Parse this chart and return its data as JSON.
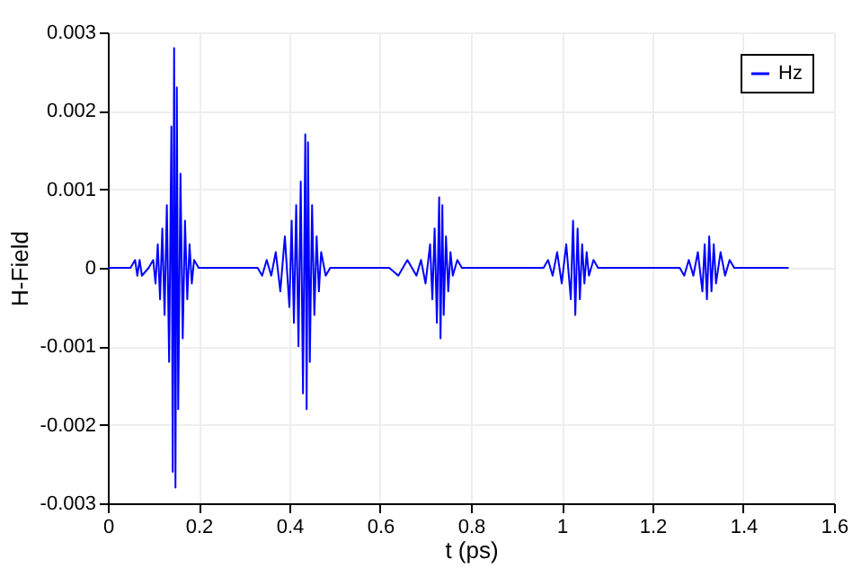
{
  "chart_data": {
    "type": "line",
    "xlabel": "t (ps)",
    "ylabel": "H-Field",
    "x": [
      0,
      0.05,
      0.06,
      0.065,
      0.07,
      0.075,
      0.09,
      0.1,
      0.105,
      0.11,
      0.115,
      0.12,
      0.125,
      0.13,
      0.135,
      0.14,
      0.143,
      0.146,
      0.149,
      0.152,
      0.155,
      0.16,
      0.165,
      0.17,
      0.175,
      0.18,
      0.185,
      0.19,
      0.2,
      0.3,
      0.33,
      0.34,
      0.35,
      0.36,
      0.37,
      0.38,
      0.39,
      0.4,
      0.405,
      0.41,
      0.415,
      0.42,
      0.425,
      0.43,
      0.435,
      0.438,
      0.441,
      0.445,
      0.45,
      0.455,
      0.46,
      0.465,
      0.47,
      0.48,
      0.49,
      0.6,
      0.62,
      0.64,
      0.66,
      0.68,
      0.69,
      0.7,
      0.71,
      0.715,
      0.72,
      0.725,
      0.73,
      0.733,
      0.737,
      0.74,
      0.745,
      0.75,
      0.755,
      0.76,
      0.77,
      0.78,
      0.96,
      0.97,
      0.98,
      0.99,
      1.0,
      1.01,
      1.02,
      1.025,
      1.03,
      1.035,
      1.04,
      1.045,
      1.05,
      1.055,
      1.06,
      1.07,
      1.08,
      1.25,
      1.26,
      1.27,
      1.28,
      1.29,
      1.3,
      1.31,
      1.315,
      1.32,
      1.325,
      1.33,
      1.335,
      1.34,
      1.35,
      1.36,
      1.37,
      1.38,
      1.5
    ],
    "series": [
      {
        "name": "Hz",
        "color": "#0000ff",
        "values": [
          0,
          0,
          0.0001,
          -0.0001,
          0.0001,
          -0.0001,
          0,
          0.0001,
          -0.0002,
          0.0003,
          -0.0004,
          0.0005,
          -0.0006,
          0.0008,
          -0.0012,
          0.0018,
          -0.0026,
          0.0028,
          -0.0028,
          0.0023,
          -0.0018,
          0.0012,
          -0.0009,
          0.0006,
          -0.0004,
          0.0003,
          -0.0002,
          0.0001,
          0,
          0,
          0,
          -0.0001,
          0.0001,
          -0.0001,
          0.0002,
          -0.0003,
          0.0004,
          -0.0005,
          0.0006,
          -0.0007,
          0.0008,
          -0.001,
          0.0011,
          -0.0016,
          0.0017,
          -0.0018,
          0.0016,
          -0.0012,
          0.0008,
          -0.0006,
          0.0004,
          -0.0003,
          0.0002,
          -0.0001,
          0,
          0,
          0,
          -0.0001,
          0.0001,
          -0.0001,
          0.0001,
          -0.0002,
          0.0003,
          -0.0004,
          0.0005,
          -0.0007,
          0.0009,
          -0.0009,
          0.0008,
          -0.0006,
          0.0004,
          -0.0003,
          0.0002,
          -0.0001,
          0.0001,
          0,
          0,
          0.0001,
          -0.0001,
          0.0002,
          -0.0002,
          0.0003,
          -0.0004,
          0.0006,
          -0.0006,
          0.0005,
          -0.0004,
          0.0003,
          -0.0002,
          0.0002,
          -0.0001,
          0.0001,
          0,
          0,
          0,
          -0.0001,
          0.0001,
          -0.0001,
          0.0002,
          -0.0003,
          0.0003,
          -0.0004,
          0.0004,
          -0.0003,
          0.0003,
          -0.0002,
          0.0002,
          -0.0001,
          0.0001,
          0,
          0
        ]
      }
    ],
    "xlim": [
      0,
      1.6
    ],
    "xticks": [
      0,
      0.2,
      0.4,
      0.6,
      0.8,
      1,
      1.2,
      1.4,
      1.6
    ],
    "ylim": [
      -0.003,
      0.003
    ],
    "yticks": [
      -0.003,
      -0.002,
      -0.001,
      0,
      0.001,
      0.002,
      0.003
    ],
    "grid": true,
    "legend": "top right",
    "marker": "none",
    "line_style": "solid"
  }
}
